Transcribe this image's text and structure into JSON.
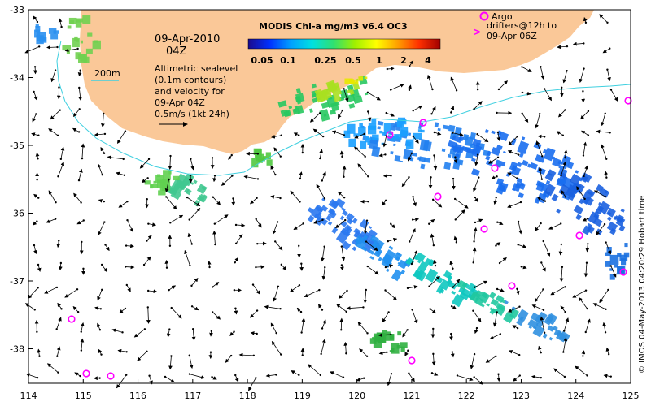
{
  "map": {
    "product_title": "MODIS Chl-a mg/m3 v6.4 OC3",
    "date": "09-Apr-2010",
    "time": "04Z",
    "contour_label": "200m",
    "sealevel_lines": [
      "Altimetric sealevel",
      "(0.1m contours)",
      "and velocity for",
      "09-Apr 04Z"
    ],
    "velocity_scale": "0.5m/s (1kt 24h)",
    "argo_lines": [
      "Argo",
      "drifters@12h to",
      "09-Apr 06Z"
    ],
    "credit": "© IMOS 04-May-2013 04:20:29 Hobart time",
    "colorbar_ticks": [
      "0.05",
      "0.1",
      "0.25",
      "0.5",
      "1",
      "2",
      "4"
    ],
    "colorbar_colors": [
      "#1a0a8c",
      "#0030ff",
      "#00a0ff",
      "#00e0e0",
      "#30e070",
      "#a0f000",
      "#ffff00",
      "#ffa000",
      "#ff3000",
      "#a00000"
    ],
    "x_axis_ticks": [
      "114",
      "115",
      "116",
      "117",
      "118",
      "119",
      "120",
      "121",
      "122",
      "123",
      "124",
      "125"
    ],
    "y_axis_ticks": [
      "-33",
      "-34",
      "-35",
      "-36",
      "-37",
      "-38"
    ],
    "land_color": "#fac898",
    "contour_color": "#40d0e0",
    "argo_color": "#ff00ff"
  }
}
